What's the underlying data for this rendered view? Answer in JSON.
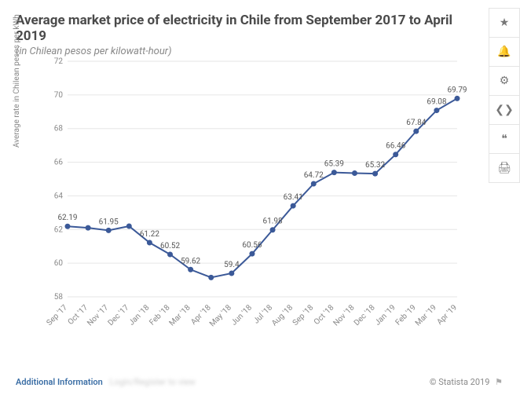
{
  "title": "Average market price of electricity in Chile from September 2017 to April 2019",
  "subtitle": "(in Chilean pesos per kilowatt-hour)",
  "y_axis_label": "Average rate in Chilean pesos per kWh",
  "chart": {
    "type": "line",
    "categories": [
      "Sep '17",
      "Oct '17",
      "Nov '17",
      "Dec '17",
      "Jan '18",
      "Feb '18",
      "Mar '18",
      "Apr '18",
      "May '18",
      "Jun '18",
      "Jul '18",
      "Aug '18",
      "Sep '18",
      "Oct '18",
      "Nov '18",
      "Dec '18",
      "Jan '19",
      "Feb '19",
      "Mar '19",
      "Apr '19"
    ],
    "values": [
      62.19,
      62.1,
      61.95,
      62.2,
      61.22,
      60.52,
      59.62,
      59.15,
      59.4,
      60.56,
      61.98,
      63.41,
      64.72,
      65.39,
      65.35,
      65.32,
      66.46,
      67.84,
      69.08,
      69.79
    ],
    "data_labels": [
      "62.19",
      "",
      "61.95",
      "",
      "61.22",
      "60.52",
      "59.62",
      "",
      "59.4",
      "60.56",
      "61.98",
      "63.41",
      "64.72",
      "65.39",
      "",
      "65.32",
      "66.46",
      "67.84",
      "69.08",
      "69.79"
    ],
    "ylim": [
      58,
      72
    ],
    "ytick_step": 2,
    "line_color": "#3b5998",
    "marker_color": "#3b5998",
    "grid_color": "#e6e6e6",
    "background_color": "#ffffff",
    "label_fontsize": 10
  },
  "side_icons": [
    "star",
    "bell",
    "gear",
    "share",
    "quote",
    "print"
  ],
  "footer": {
    "additional": "Additional Information",
    "blurred": "Login/Register to view",
    "copyright": "© Statista 2019"
  }
}
